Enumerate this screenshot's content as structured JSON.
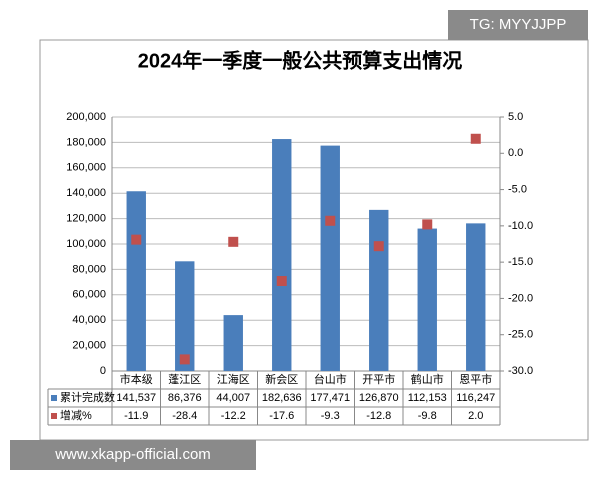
{
  "chart_data": {
    "type": "bar",
    "title": "2024年一季度一般公共预算支出情况",
    "categories": [
      "市本级",
      "蓬江区",
      "江海区",
      "新会区",
      "台山市",
      "开平市",
      "鹤山市",
      "恩平市"
    ],
    "series": [
      {
        "name": "累计完成数",
        "type": "bar",
        "color": "#4a7ebb",
        "values": [
          141537,
          86376,
          44007,
          182636,
          177471,
          126870,
          112153,
          116247
        ],
        "value_labels": [
          "141,537",
          "86,376",
          "44,007",
          "182,636",
          "177,471",
          "126,870",
          "112,153",
          "116,247"
        ]
      },
      {
        "name": "增减%",
        "type": "scatter",
        "axis": "y2",
        "color": "#c0504d",
        "values": [
          -11.9,
          -28.4,
          -12.2,
          -17.6,
          -9.3,
          -12.8,
          -9.8,
          2.0
        ],
        "value_labels": [
          "-11.9",
          "-28.4",
          "-12.2",
          "-17.6",
          "-9.3",
          "-12.8",
          "-9.8",
          "2.0"
        ]
      }
    ],
    "ylim": [
      0,
      200000
    ],
    "yticks": [
      0,
      {
        "value": 20000,
        "label": "20,000"
      },
      {
        "value": 40000,
        "label": "40,000"
      },
      {
        "value": 60000,
        "label": "60,000"
      },
      {
        "value": 80000,
        "label": "80,000"
      },
      {
        "value": 100000,
        "label": "100,000"
      },
      {
        "value": 120000,
        "label": "120,000"
      },
      {
        "value": 140000,
        "label": "140,000"
      },
      {
        "value": 160000,
        "label": "160,000"
      },
      {
        "value": 180000,
        "label": "180,000"
      },
      {
        "value": 200000,
        "label": "200,000"
      }
    ],
    "y2lim": [
      -30,
      5
    ],
    "y2ticks": [
      {
        "value": 5,
        "label": "5.0"
      },
      {
        "value": 0,
        "label": "0.0"
      },
      {
        "value": -5,
        "label": "-5.0"
      },
      {
        "value": -10,
        "label": "-10.0"
      },
      {
        "value": -15,
        "label": "-15.0"
      },
      {
        "value": -20,
        "label": "-20.0"
      },
      {
        "value": -25,
        "label": "-25.0"
      },
      {
        "value": -30,
        "label": "-30.0"
      }
    ],
    "grid": true
  },
  "watermarks": [
    "TG: MYYJJPP",
    "www.xkapp-official.com"
  ]
}
